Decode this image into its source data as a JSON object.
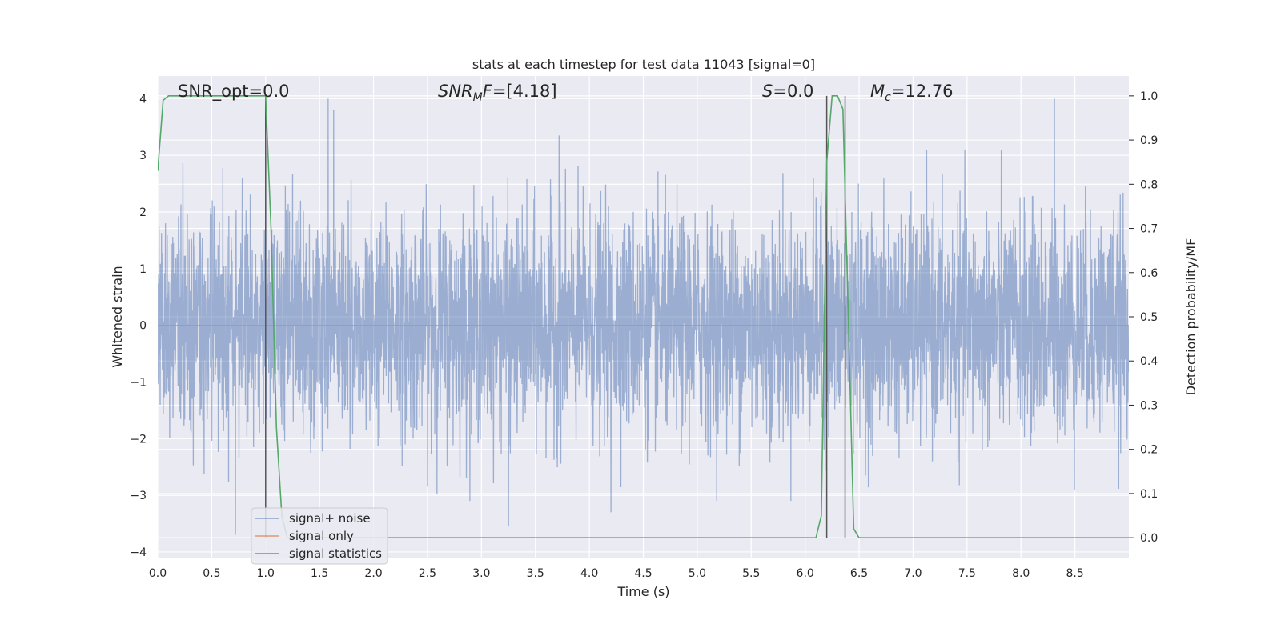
{
  "chart_data": {
    "type": "line",
    "title": "stats at each timestep for test data 11043 [signal=0]",
    "xlabel": "Time (s)",
    "ylabel": "Whitened strain",
    "y2label": "Detection probability/MF",
    "xlim": [
      0,
      9.0
    ],
    "ylim": [
      -4.1,
      4.4
    ],
    "y2lim": [
      -0.045,
      1.045
    ],
    "x_ticks": [
      "0.0",
      "0.5",
      "1.0",
      "1.5",
      "2.0",
      "2.5",
      "3.0",
      "3.5",
      "4.0",
      "4.5",
      "5.0",
      "5.5",
      "6.0",
      "6.5",
      "7.0",
      "7.5",
      "8.0",
      "8.5"
    ],
    "y_ticks": [
      "4",
      "3",
      "2",
      "1",
      "0",
      "−1",
      "−2",
      "−3",
      "−4"
    ],
    "y2_ticks": [
      "1.0",
      "0.9",
      "0.8",
      "0.7",
      "0.6",
      "0.5",
      "0.4",
      "0.3",
      "0.2",
      "0.1",
      "0.0"
    ],
    "grid": true,
    "legend_position": "lower-left",
    "colors": {
      "noise": "#4c72b0",
      "signal": "#dd8452",
      "stats": "#55a868",
      "marker": "#555555",
      "background": "#eaeaf2",
      "grid": "#ffffff"
    },
    "annotations": [
      {
        "id": "snr-opt",
        "text": "SNR_opt=0.0"
      },
      {
        "id": "snr-mf",
        "text": "SNR_MF=[4.18]",
        "math": "snr-mf"
      },
      {
        "id": "s-value",
        "text": "S=0.0",
        "math": "s"
      },
      {
        "id": "mc-value",
        "text": "M_c=12.76",
        "math": "mc"
      }
    ],
    "series": [
      {
        "name": "signal+ noise",
        "role": "noise",
        "description": "whitened noise trace, roughly Gaussian, range about -3.7 to 4.0",
        "sample_rate_hz": 2048,
        "spikes": [
          [
            1.0,
            3.9
          ],
          [
            1.58,
            4.0
          ],
          [
            1.63,
            3.8
          ],
          [
            3.72,
            3.35
          ],
          [
            8.31,
            4.0
          ],
          [
            0.72,
            -3.7
          ],
          [
            3.25,
            -3.55
          ],
          [
            4.2,
            -3.3
          ]
        ]
      },
      {
        "name": "signal only",
        "role": "signal",
        "x": [
          0,
          9.0
        ],
        "y": [
          0,
          0
        ]
      },
      {
        "name": "signal statistics",
        "role": "stats",
        "axis": "right",
        "x": [
          0.0,
          0.05,
          0.1,
          0.9,
          1.0,
          1.05,
          1.1,
          1.15,
          1.2,
          6.1,
          6.15,
          6.2,
          6.25,
          6.3,
          6.35,
          6.4,
          6.45,
          6.5,
          9.0
        ],
        "y": [
          0.83,
          0.99,
          1.0,
          1.0,
          1.0,
          0.7,
          0.25,
          0.05,
          0.0,
          0.0,
          0.05,
          0.85,
          1.0,
          1.0,
          0.97,
          0.5,
          0.02,
          0.0,
          0.0
        ]
      }
    ],
    "vertical_markers": [
      1.0,
      6.2,
      6.37
    ]
  }
}
